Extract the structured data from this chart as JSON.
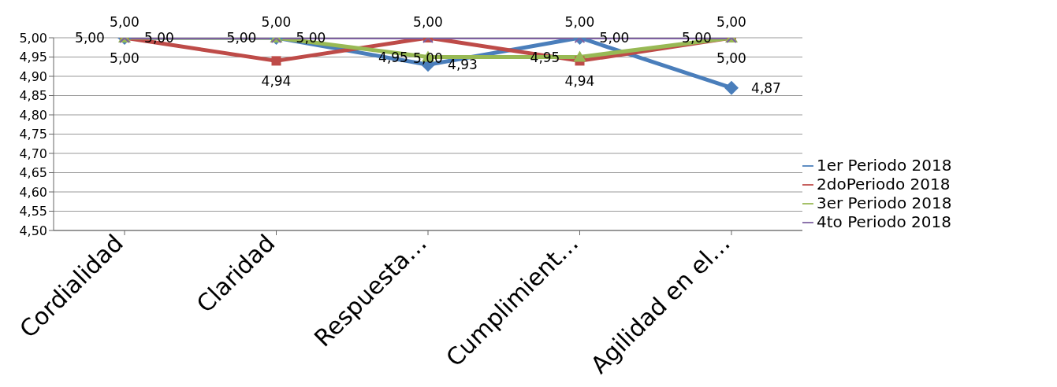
{
  "chart_data": {
    "type": "line",
    "categories": [
      "Cordialidad",
      "Claridad",
      "Respuesta…",
      "Cumplimient…",
      "Agilidad en el…"
    ],
    "series": [
      {
        "name": "1er Periodo 2018",
        "color": "#4a7ebb",
        "marker": "diamond",
        "values": [
          5.0,
          5.0,
          4.93,
          5.0,
          4.87
        ],
        "value_labels": [
          "5,00",
          "5,00",
          "4,93",
          "5,00",
          "4,87"
        ]
      },
      {
        "name": "2doPeriodo 2018",
        "color": "#be4b48",
        "marker": "square",
        "values": [
          5.0,
          4.94,
          5.0,
          4.94,
          5.0
        ],
        "value_labels": [
          "5,00",
          "4,94",
          "5,00",
          "4,94",
          "5,00"
        ]
      },
      {
        "name": "3er Periodo 2018",
        "color": "#98b954",
        "marker": "triangle",
        "values": [
          5.0,
          5.0,
          4.95,
          4.95,
          5.0
        ],
        "value_labels": [
          "5,00",
          "5,00",
          "4,95",
          "4,95",
          "5,00"
        ]
      },
      {
        "name": "4to Periodo 2018",
        "color": "#7d60a0",
        "marker": "cross",
        "values": [
          5.0,
          5.0,
          5.0,
          5.0,
          5.0
        ],
        "value_labels": [
          "5,00",
          "5,00",
          "5,00",
          "5,00",
          "5,00"
        ]
      }
    ],
    "ylim": [
      4.5,
      5.0
    ],
    "yticks": [
      {
        "value": 4.5,
        "label": "4,50"
      },
      {
        "value": 4.55,
        "label": "4,55"
      },
      {
        "value": 4.6,
        "label": "4,60"
      },
      {
        "value": 4.65,
        "label": "4,65"
      },
      {
        "value": 4.7,
        "label": "4,70"
      },
      {
        "value": 4.75,
        "label": "4,75"
      },
      {
        "value": 4.8,
        "label": "4,80"
      },
      {
        "value": 4.85,
        "label": "4,85"
      },
      {
        "value": 4.9,
        "label": "4,90"
      },
      {
        "value": 4.95,
        "label": "4,95"
      },
      {
        "value": 5.0,
        "label": "5,00"
      }
    ],
    "grid": "y",
    "legend": "right"
  }
}
